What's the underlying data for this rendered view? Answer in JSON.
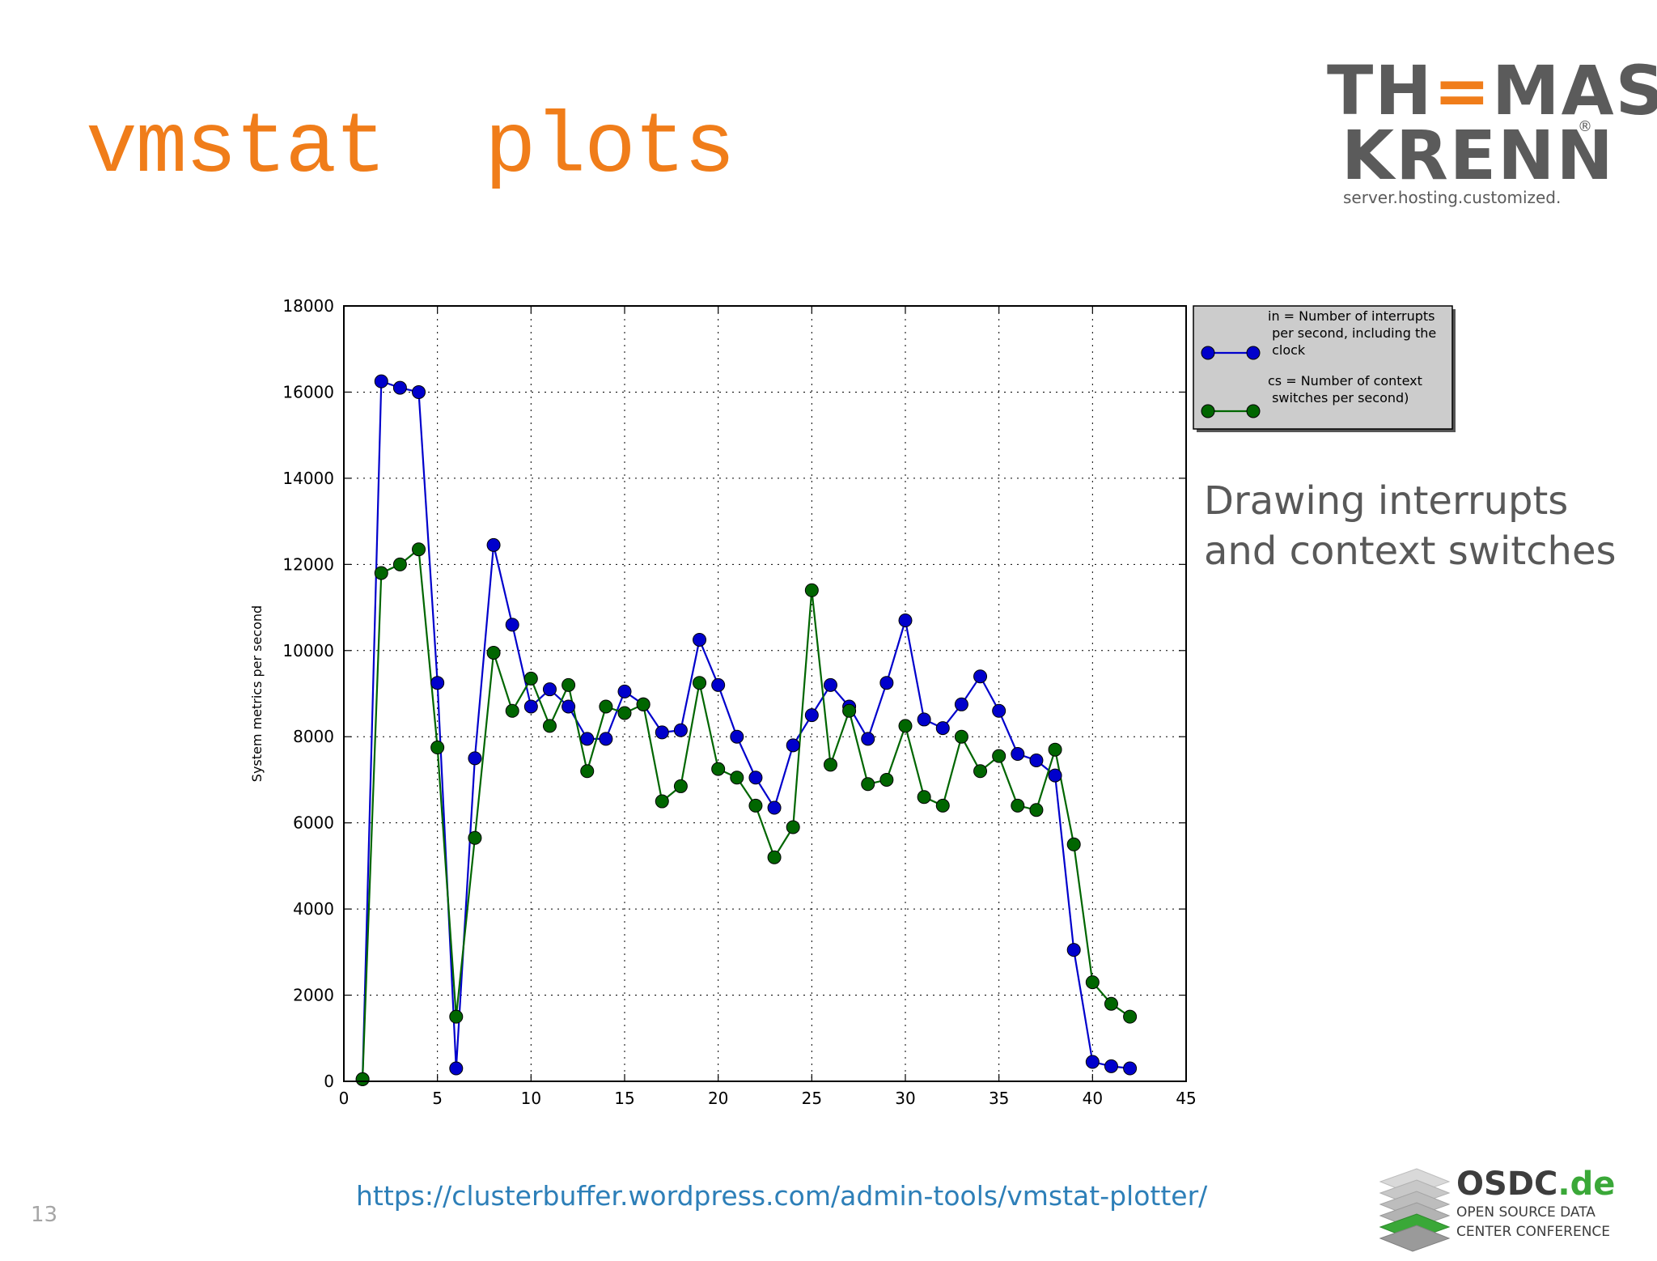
{
  "slide": {
    "title": "vmstat  plots",
    "caption_line1": "Drawing interrupts",
    "caption_line2": "and context switches",
    "source_url": "https://clusterbuffer.wordpress.com/admin-tools/vmstat-plotter/",
    "page_number": "13"
  },
  "logo": {
    "line1_a": "TH",
    "line1_b": "MAS",
    "line2": "KRENN",
    "registered": "®",
    "tagline": "server.hosting.customized.",
    "brand_color": "#f07d1a",
    "text_color": "#5b5b5b"
  },
  "conference": {
    "name": "OSDC",
    "tld": ".de",
    "line1": "OPEN SOURCE DATA",
    "line2": "CENTER CONFERENCE"
  },
  "chart_data": {
    "type": "line",
    "title": "",
    "xlabel": "",
    "ylabel": "System metrics per second",
    "xlim": [
      0,
      45
    ],
    "ylim": [
      0,
      18000
    ],
    "x_ticks": [
      0,
      5,
      10,
      15,
      20,
      25,
      30,
      35,
      40,
      45
    ],
    "y_ticks": [
      0,
      2000,
      4000,
      6000,
      8000,
      10000,
      12000,
      14000,
      16000,
      18000
    ],
    "grid": true,
    "legend_position": "outside-top-right",
    "x": [
      1,
      2,
      3,
      4,
      5,
      6,
      7,
      8,
      9,
      10,
      11,
      12,
      13,
      14,
      15,
      16,
      17,
      18,
      19,
      20,
      21,
      22,
      23,
      24,
      25,
      26,
      27,
      28,
      29,
      30,
      31,
      32,
      33,
      34,
      35,
      36,
      37,
      38,
      39,
      40,
      41,
      42
    ],
    "series": [
      {
        "name": "in = Number of interrupts per second, including the clock",
        "legend_lines": [
          "in = Number of interrupts",
          " per second, including the",
          " clock"
        ],
        "color": "#0000cc",
        "values": [
          50,
          16250,
          16100,
          16000,
          9250,
          300,
          7500,
          12450,
          10600,
          8700,
          9100,
          8700,
          7950,
          7950,
          9050,
          8750,
          8100,
          8150,
          10250,
          9200,
          8000,
          7050,
          6350,
          7800,
          8500,
          9200,
          8700,
          7950,
          9250,
          10700,
          8400,
          8200,
          8750,
          9400,
          8600,
          7600,
          7450,
          7100,
          3050,
          450,
          350,
          300
        ]
      },
      {
        "name": "cs = Number of context switches per second)",
        "legend_lines": [
          "cs = Number of context",
          " switches per second)"
        ],
        "color": "#006600",
        "values": [
          50,
          11800,
          12000,
          12350,
          7750,
          1500,
          5650,
          9950,
          8600,
          9350,
          8250,
          9200,
          7200,
          8700,
          8550,
          8750,
          6500,
          6850,
          9250,
          7250,
          7050,
          6400,
          5200,
          5900,
          11400,
          7350,
          8600,
          6900,
          7000,
          8250,
          6600,
          6400,
          8000,
          7200,
          7550,
          6400,
          6300,
          7700,
          5500,
          2300,
          1800,
          1500
        ]
      }
    ]
  }
}
